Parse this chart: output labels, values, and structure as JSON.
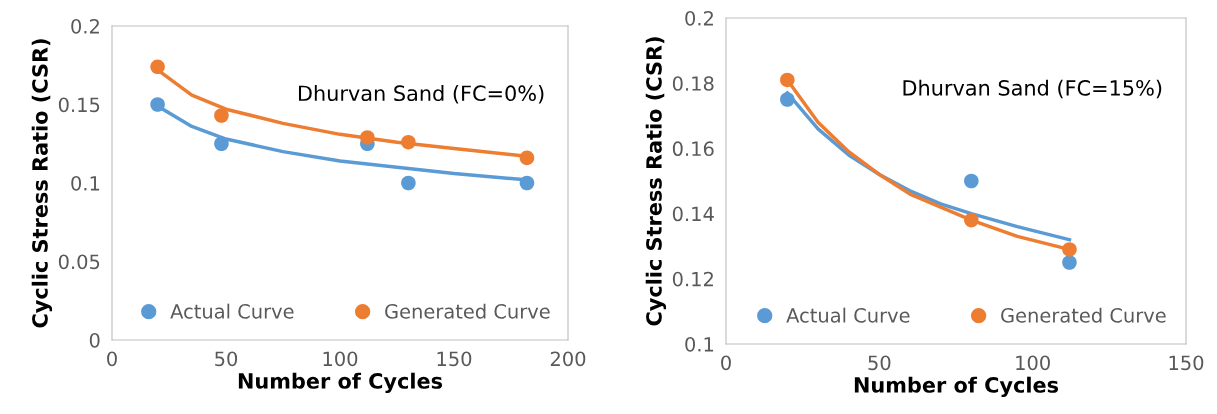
{
  "chart_data": [
    {
      "type": "scatter",
      "xlabel": "Number of Cycles",
      "ylabel": "Cyclic Stress Ratio (CSR)",
      "annotations": [
        "Dhurvan Sand (FC=0%)"
      ],
      "xlim": [
        0,
        200
      ],
      "xticks": [
        0,
        50,
        100,
        150,
        200
      ],
      "ylim": [
        0,
        0.2
      ],
      "yticks": [
        0,
        0.05,
        0.1,
        0.15,
        0.2
      ],
      "grid": false,
      "legend": "bottom",
      "series": [
        {
          "name": "Actual Curve",
          "marker": "circle",
          "color": "#5b9bd5",
          "x": [
            20,
            48,
            112,
            130,
            182
          ],
          "values": [
            0.15,
            0.125,
            0.125,
            0.1,
            0.1
          ]
        },
        {
          "name": "Generated Curve",
          "marker": "circle",
          "color": "#ed7d31",
          "x": [
            20,
            48,
            112,
            130,
            182
          ],
          "values": [
            0.174,
            0.143,
            0.129,
            0.126,
            0.116
          ]
        },
        {
          "type": "line",
          "marker": "none",
          "color": "#5b9bd5",
          "x": [
            20,
            35,
            50,
            75,
            100,
            125,
            150,
            182
          ],
          "values": [
            0.149,
            0.136,
            0.128,
            0.12,
            0.114,
            0.11,
            0.106,
            0.102
          ]
        },
        {
          "type": "line",
          "marker": "none",
          "color": "#ed7d31",
          "x": [
            20,
            35,
            50,
            75,
            100,
            125,
            150,
            182
          ],
          "values": [
            0.172,
            0.156,
            0.147,
            0.138,
            0.131,
            0.126,
            0.122,
            0.117
          ]
        }
      ]
    },
    {
      "type": "scatter",
      "xlabel": "Number of Cycles",
      "ylabel": "Cyclic Stress Ratio (CSR)",
      "annotations": [
        "Dhurvan Sand (FC=15%)"
      ],
      "xlim": [
        0,
        150
      ],
      "xticks": [
        0,
        50,
        100,
        150
      ],
      "ylim": [
        0.1,
        0.2
      ],
      "yticks": [
        0.1,
        0.12,
        0.14,
        0.16,
        0.18,
        0.2
      ],
      "grid": false,
      "legend": "bottom",
      "series": [
        {
          "name": "Actual Curve",
          "marker": "circle",
          "color": "#5b9bd5",
          "x": [
            20,
            80,
            112
          ],
          "values": [
            0.175,
            0.15,
            0.125
          ]
        },
        {
          "name": "Generated Curve",
          "marker": "circle",
          "color": "#ed7d31",
          "x": [
            20,
            80,
            112
          ],
          "values": [
            0.181,
            0.138,
            0.129
          ]
        },
        {
          "type": "line",
          "marker": "none",
          "color": "#5b9bd5",
          "x": [
            20,
            30,
            40,
            50,
            60,
            70,
            80,
            95,
            112
          ],
          "values": [
            0.177,
            0.166,
            0.158,
            0.152,
            0.147,
            0.143,
            0.14,
            0.136,
            0.132
          ]
        },
        {
          "type": "line",
          "marker": "none",
          "color": "#ed7d31",
          "x": [
            20,
            30,
            40,
            50,
            60,
            70,
            80,
            95,
            112
          ],
          "values": [
            0.181,
            0.168,
            0.159,
            0.152,
            0.146,
            0.142,
            0.138,
            0.133,
            0.129
          ]
        }
      ]
    }
  ]
}
